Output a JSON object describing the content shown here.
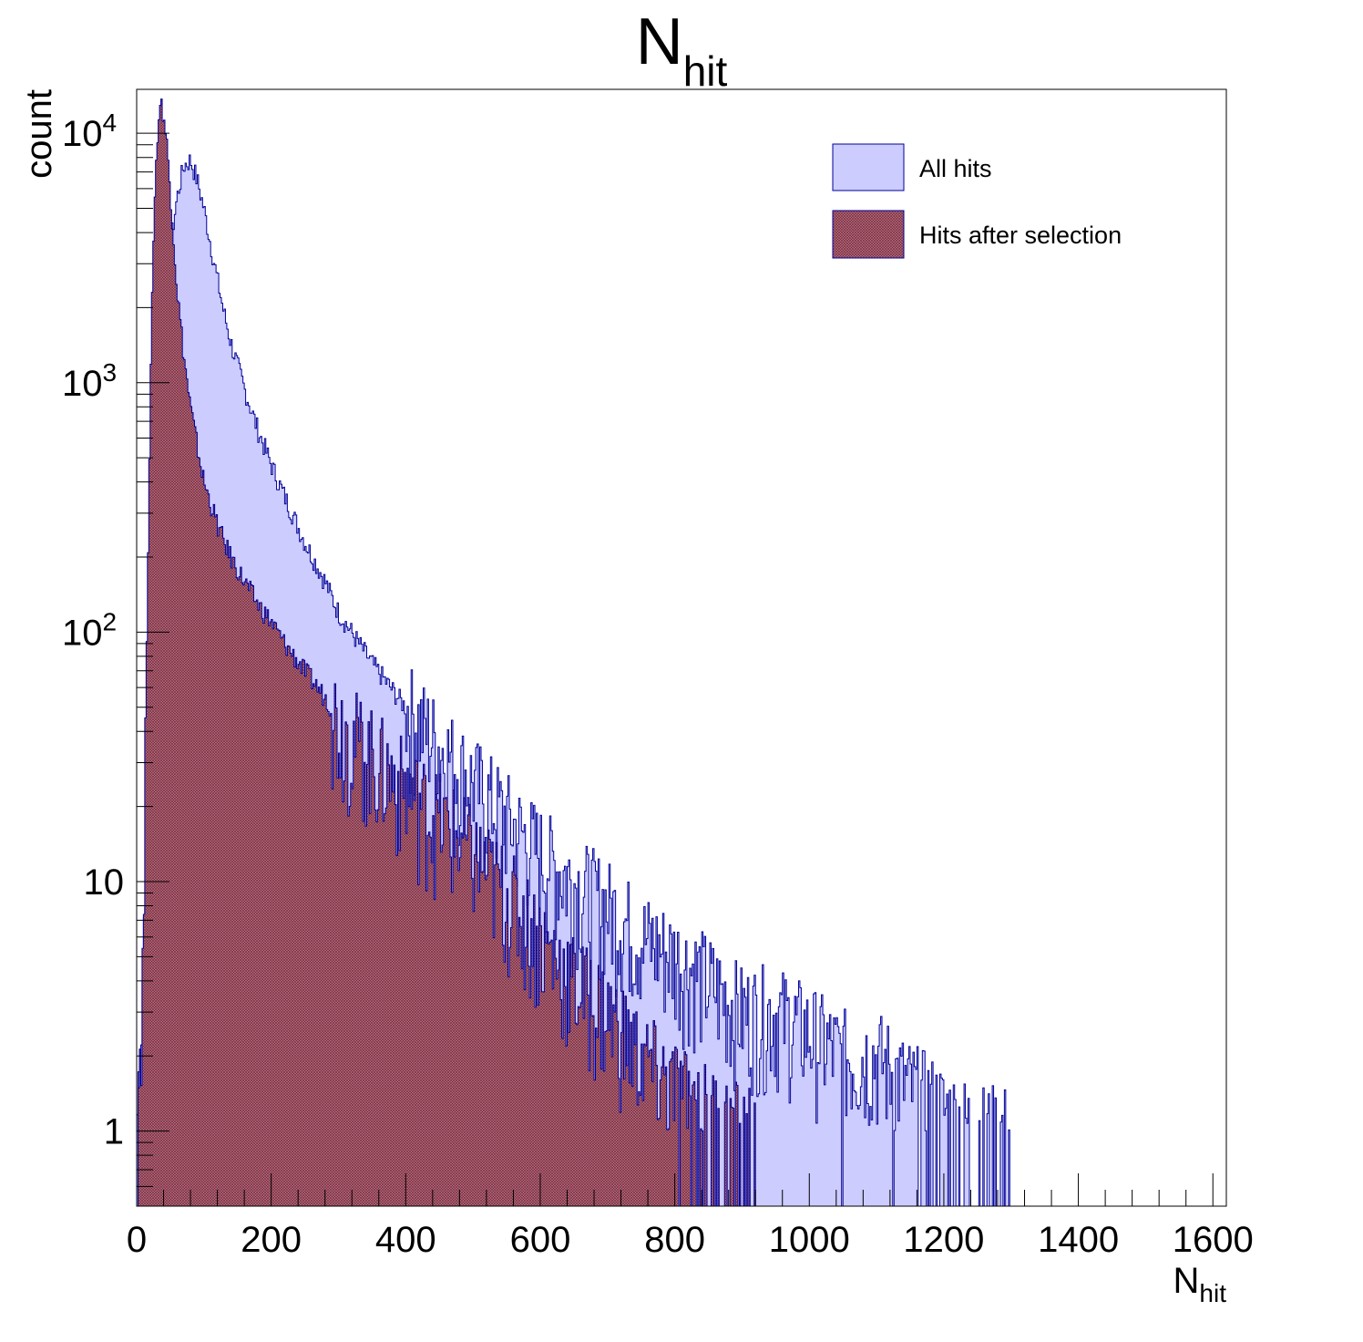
{
  "chart_data": {
    "type": "histogram",
    "title": "N",
    "title_sub": "hit",
    "xlabel": "N",
    "xlabel_sub": "hit",
    "ylabel": "count",
    "xlim": [
      0,
      1620
    ],
    "ylim": [
      0.5,
      15000
    ],
    "y_scale": "log",
    "grid": false,
    "legend_position": "top-right",
    "x_ticks": [
      {
        "value": 0,
        "label": "0"
      },
      {
        "value": 200,
        "label": "200"
      },
      {
        "value": 400,
        "label": "400"
      },
      {
        "value": 600,
        "label": "600"
      },
      {
        "value": 800,
        "label": "800"
      },
      {
        "value": 1000,
        "label": "1000"
      },
      {
        "value": 1200,
        "label": "1200"
      },
      {
        "value": 1400,
        "label": "1400"
      },
      {
        "value": 1600,
        "label": "1600"
      }
    ],
    "y_ticks": [
      {
        "value": 1,
        "label": "1",
        "sup": ""
      },
      {
        "value": 10,
        "label": "10",
        "sup": ""
      },
      {
        "value": 100,
        "label": "10",
        "sup": "2"
      },
      {
        "value": 1000,
        "label": "10",
        "sup": "3"
      },
      {
        "value": 10000,
        "label": "10",
        "sup": "4"
      }
    ],
    "series": [
      {
        "name": "All hits",
        "fill_color": "#ccccff",
        "line_color": "#000099",
        "pattern": "solid",
        "x": [
          0,
          10,
          15,
          20,
          30,
          40,
          50,
          60,
          70,
          80,
          90,
          100,
          110,
          120,
          130,
          140,
          160,
          180,
          200,
          220,
          250,
          280,
          300,
          350,
          400,
          450,
          500,
          550,
          600,
          650,
          700,
          750,
          800,
          850,
          900,
          950,
          1000,
          1050,
          1100,
          1150,
          1200,
          1250,
          1300
        ],
        "y": [
          1,
          5,
          30,
          150,
          600,
          1800,
          3500,
          5500,
          7400,
          7800,
          6500,
          5000,
          3600,
          2600,
          1900,
          1450,
          950,
          650,
          470,
          350,
          230,
          160,
          120,
          75,
          50,
          35,
          25,
          18,
          13,
          10,
          8,
          6,
          5,
          4,
          3,
          3,
          2.5,
          2,
          2,
          1.5,
          1.2,
          1,
          1
        ]
      },
      {
        "name": "Hits after selection",
        "fill_color": "#cc6677",
        "line_color": "#000099",
        "pattern": "crosshatch",
        "x": [
          0,
          10,
          15,
          20,
          25,
          30,
          35,
          40,
          45,
          50,
          55,
          60,
          70,
          80,
          90,
          100,
          110,
          120,
          130,
          140,
          160,
          180,
          200,
          220,
          250,
          280,
          300,
          350,
          400,
          450,
          500,
          550,
          600,
          650,
          700,
          750,
          800,
          850,
          900,
          920
        ],
        "y": [
          1,
          5,
          100,
          800,
          4000,
          9000,
          13500,
          12000,
          9000,
          6000,
          3800,
          2400,
          1300,
          800,
          560,
          400,
          330,
          270,
          230,
          200,
          160,
          130,
          110,
          90,
          70,
          55,
          45,
          32,
          24,
          18,
          13,
          9,
          6,
          4,
          3,
          2,
          1.5,
          1.2,
          1,
          1
        ]
      }
    ]
  }
}
